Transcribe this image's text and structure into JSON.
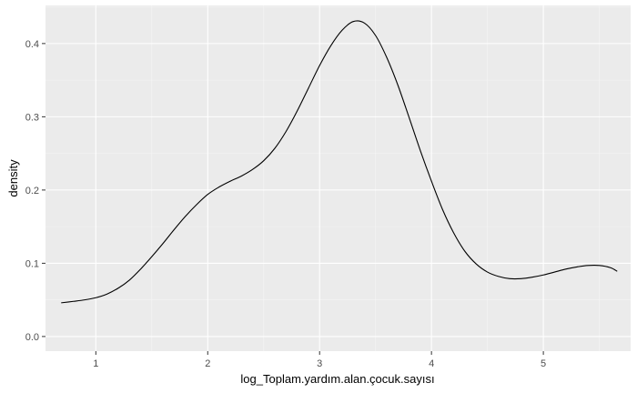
{
  "chart_data": {
    "type": "line",
    "title": "",
    "xlabel": "log_Toplam.yardım.alan.çocuk.sayısı",
    "ylabel": "density",
    "xlim": [
      0.55,
      5.78
    ],
    "ylim": [
      -0.02,
      0.452
    ],
    "x_ticks": [
      1,
      2,
      3,
      4,
      5
    ],
    "y_ticks": [
      0.0,
      0.1,
      0.2,
      0.3,
      0.4
    ],
    "x_tick_labels": [
      "1",
      "2",
      "3",
      "4",
      "5"
    ],
    "y_tick_labels": [
      "0.0",
      "0.1",
      "0.2",
      "0.3",
      "0.4"
    ],
    "grid": true,
    "colors": {
      "panel": "#ebebeb",
      "grid_major": "#ffffff",
      "grid_minor": "#f5f5f5",
      "line": "#000000"
    },
    "series": [
      {
        "x": [
          0.69,
          0.8,
          0.9,
          1.0,
          1.1,
          1.2,
          1.3,
          1.4,
          1.5,
          1.6,
          1.7,
          1.8,
          1.9,
          2.0,
          2.1,
          2.2,
          2.3,
          2.4,
          2.5,
          2.6,
          2.7,
          2.8,
          2.9,
          3.0,
          3.1,
          3.2,
          3.3,
          3.4,
          3.5,
          3.6,
          3.7,
          3.8,
          3.9,
          4.0,
          4.1,
          4.2,
          4.3,
          4.4,
          4.5,
          4.6,
          4.7,
          4.8,
          4.9,
          5.0,
          5.1,
          5.2,
          5.3,
          5.4,
          5.5,
          5.6,
          5.66
        ],
        "y": [
          0.046,
          0.048,
          0.05,
          0.053,
          0.058,
          0.066,
          0.077,
          0.092,
          0.109,
          0.127,
          0.146,
          0.164,
          0.18,
          0.194,
          0.204,
          0.212,
          0.219,
          0.228,
          0.24,
          0.257,
          0.28,
          0.308,
          0.339,
          0.37,
          0.397,
          0.418,
          0.43,
          0.428,
          0.411,
          0.381,
          0.343,
          0.299,
          0.254,
          0.212,
          0.173,
          0.141,
          0.116,
          0.099,
          0.088,
          0.082,
          0.079,
          0.079,
          0.081,
          0.084,
          0.088,
          0.092,
          0.095,
          0.097,
          0.097,
          0.094,
          0.089
        ]
      }
    ]
  }
}
